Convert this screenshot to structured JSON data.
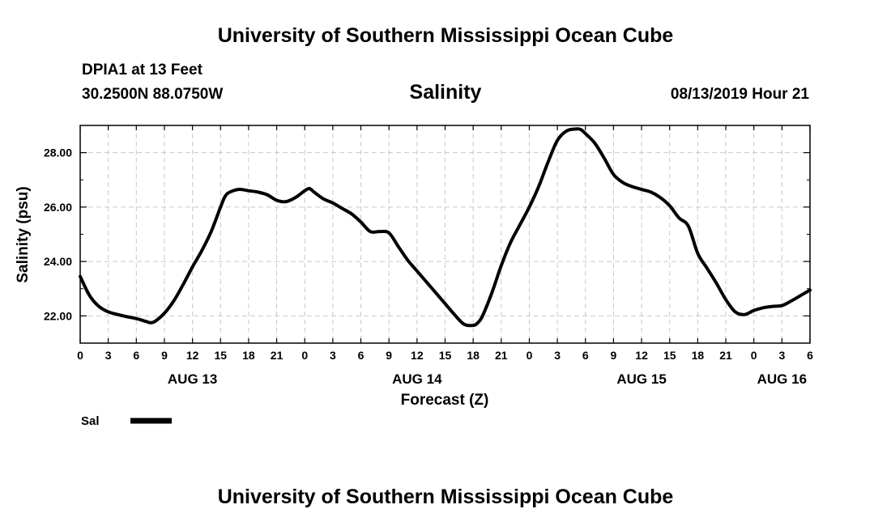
{
  "page": {
    "top_title": "University of Southern Mississippi Ocean Cube",
    "bottom_title": "University of Southern Mississippi Ocean Cube",
    "station": "DPIA1 at 13 Feet",
    "coordinates": "30.2500N 88.0750W",
    "run_time": "08/13/2019 Hour 21"
  },
  "chart_data": {
    "type": "line",
    "title": "Salinity",
    "xlabel": "Forecast (Z)",
    "ylabel": "Salinity (psu)",
    "x_unit": "hours from 2019-08-13 00Z",
    "xlim": [
      0,
      78
    ],
    "ylim": [
      21.0,
      29.0
    ],
    "y_ticks": [
      "22.00",
      "24.00",
      "26.00",
      "28.00"
    ],
    "y_tick_values": [
      22,
      24,
      26,
      28
    ],
    "x_ticks": [
      {
        "x": 0,
        "label": "0"
      },
      {
        "x": 3,
        "label": "3"
      },
      {
        "x": 6,
        "label": "6"
      },
      {
        "x": 9,
        "label": "9"
      },
      {
        "x": 12,
        "label": "12"
      },
      {
        "x": 15,
        "label": "15"
      },
      {
        "x": 18,
        "label": "18"
      },
      {
        "x": 21,
        "label": "21"
      },
      {
        "x": 24,
        "label": "0"
      },
      {
        "x": 27,
        "label": "3"
      },
      {
        "x": 30,
        "label": "6"
      },
      {
        "x": 33,
        "label": "9"
      },
      {
        "x": 36,
        "label": "12"
      },
      {
        "x": 39,
        "label": "15"
      },
      {
        "x": 42,
        "label": "18"
      },
      {
        "x": 45,
        "label": "21"
      },
      {
        "x": 48,
        "label": "0"
      },
      {
        "x": 51,
        "label": "3"
      },
      {
        "x": 54,
        "label": "6"
      },
      {
        "x": 57,
        "label": "9"
      },
      {
        "x": 60,
        "label": "12"
      },
      {
        "x": 63,
        "label": "15"
      },
      {
        "x": 66,
        "label": "18"
      },
      {
        "x": 69,
        "label": "21"
      },
      {
        "x": 72,
        "label": "0"
      },
      {
        "x": 75,
        "label": "3"
      },
      {
        "x": 78,
        "label": "6"
      }
    ],
    "day_labels": [
      {
        "x": 12,
        "label": "AUG 13"
      },
      {
        "x": 36,
        "label": "AUG 14"
      },
      {
        "x": 60,
        "label": "AUG 15"
      },
      {
        "x": 75,
        "label": "AUG 16"
      }
    ],
    "grid": true,
    "legend": {
      "position": "bottom-left",
      "entries": [
        {
          "label": "Sal",
          "color": "#000000"
        }
      ]
    },
    "series": [
      {
        "name": "Sal",
        "color": "#000000",
        "x": [
          0,
          1,
          2,
          3,
          4,
          5,
          6,
          7,
          7.5,
          8,
          9,
          10,
          11,
          12,
          13,
          14,
          15,
          15.5,
          16,
          17,
          18,
          19,
          20,
          21,
          22,
          23,
          24,
          24.5,
          25,
          26,
          27,
          28,
          29,
          30,
          31,
          32,
          33,
          34,
          35,
          36,
          37,
          38,
          39,
          40,
          41,
          42,
          42.5,
          43,
          44,
          45,
          46,
          47,
          48,
          49,
          50,
          51,
          52,
          53,
          53.5,
          54,
          55,
          56,
          57,
          58,
          59,
          60,
          61,
          62,
          63,
          64,
          65,
          66,
          67,
          68,
          69,
          70,
          71,
          72,
          73,
          74,
          75,
          76,
          77,
          78
        ],
        "values": [
          23.45,
          22.75,
          22.35,
          22.15,
          22.05,
          21.97,
          21.9,
          21.8,
          21.75,
          21.8,
          22.1,
          22.55,
          23.15,
          23.8,
          24.4,
          25.1,
          26.0,
          26.4,
          26.55,
          26.65,
          26.6,
          26.55,
          26.45,
          26.25,
          26.2,
          26.35,
          26.6,
          26.68,
          26.55,
          26.3,
          26.15,
          25.95,
          25.75,
          25.45,
          25.1,
          25.1,
          25.05,
          24.55,
          24.05,
          23.65,
          23.25,
          22.85,
          22.45,
          22.05,
          21.7,
          21.65,
          21.75,
          22.0,
          22.85,
          23.85,
          24.7,
          25.35,
          26.0,
          26.75,
          27.65,
          28.45,
          28.8,
          28.87,
          28.85,
          28.7,
          28.35,
          27.8,
          27.2,
          26.9,
          26.75,
          26.65,
          26.55,
          26.35,
          26.05,
          25.6,
          25.3,
          24.3,
          23.75,
          23.2,
          22.6,
          22.15,
          22.05,
          22.2,
          22.3,
          22.35,
          22.38,
          22.55,
          22.75,
          22.95
        ]
      }
    ]
  }
}
